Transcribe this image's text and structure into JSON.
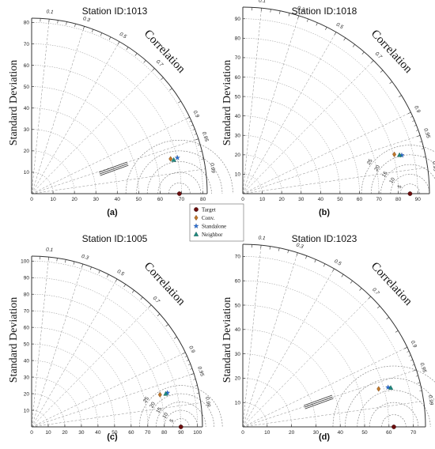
{
  "legend": {
    "items": [
      {
        "label": "Target",
        "marker": "circle",
        "color": "#6b0d0d"
      },
      {
        "label": "Conv.",
        "marker": "diamond",
        "color": "#c0782a"
      },
      {
        "label": "Standalone",
        "marker": "star",
        "color": "#2a6fd6"
      },
      {
        "label": "Neighbor",
        "marker": "triangle",
        "color": "#1f8a80"
      }
    ]
  },
  "chart_data": [
    {
      "type": "taylor",
      "title": "Station ID:1013",
      "panel_label": "(a)",
      "xlabel": "",
      "ylabel": "Standard Deviation",
      "corr_label": "Correlation",
      "max_std": 82,
      "x_ticks": [
        0,
        10,
        20,
        30,
        40,
        50,
        60,
        70,
        80
      ],
      "y_ticks": [
        10,
        20,
        30,
        40,
        50,
        60,
        70,
        80
      ],
      "corr_ticks": [
        0.1,
        0.3,
        0.5,
        0.7,
        0.9,
        0.95,
        0.99
      ],
      "ref_std": 69,
      "rms_arcs": [
        5,
        10,
        15,
        20,
        25
      ],
      "rms_labels_strikethrough": true,
      "rms_labels": [],
      "points": [
        {
          "name": "Target",
          "std": 69,
          "corr": 1.0
        },
        {
          "name": "Conv.",
          "std": 66.9,
          "corr": 0.97
        },
        {
          "name": "Standalone",
          "std": 70.1,
          "corr": 0.971
        },
        {
          "name": "Neighbor",
          "std": 68.2,
          "corr": 0.973
        }
      ]
    },
    {
      "type": "taylor",
      "title": "Station ID:1018",
      "panel_label": "(b)",
      "xlabel": "",
      "ylabel": "Standard Deviation",
      "corr_label": "Correlation",
      "max_std": 96,
      "x_ticks": [
        0,
        10,
        20,
        30,
        40,
        50,
        60,
        70,
        80,
        90
      ],
      "y_ticks": [
        10,
        20,
        30,
        40,
        50,
        60,
        70,
        80,
        90
      ],
      "corr_ticks": [
        0.1,
        0.3,
        0.5,
        0.7,
        0.9,
        0.95,
        0.99
      ],
      "ref_std": 86,
      "rms_arcs": [
        5,
        10,
        15,
        20,
        25
      ],
      "rms_labels_strikethrough": false,
      "rms_labels": [
        "25",
        "20",
        "15",
        "10",
        "5"
      ],
      "points": [
        {
          "name": "Target",
          "std": 86,
          "corr": 1.0
        },
        {
          "name": "Conv.",
          "std": 80.5,
          "corr": 0.968
        },
        {
          "name": "Standalone",
          "std": 84.1,
          "corr": 0.972
        },
        {
          "name": "Neighbor",
          "std": 83.0,
          "corr": 0.971
        }
      ]
    },
    {
      "type": "taylor",
      "title": "Station ID:1005",
      "panel_label": "(c)",
      "xlabel": "",
      "ylabel": "Standard Deviation",
      "corr_label": "Correlation",
      "max_std": 103,
      "x_ticks": [
        0,
        10,
        20,
        30,
        40,
        50,
        60,
        70,
        80,
        90,
        100
      ],
      "y_ticks": [
        10,
        20,
        30,
        40,
        50,
        60,
        70,
        80,
        90,
        100
      ],
      "corr_ticks": [
        0.1,
        0.3,
        0.5,
        0.7,
        0.9,
        0.95,
        0.99
      ],
      "ref_std": 90,
      "rms_arcs": [
        5,
        10,
        15,
        20,
        25
      ],
      "rms_labels_strikethrough": false,
      "rms_labels": [
        "25",
        "20",
        "15",
        "10",
        "5"
      ],
      "points": [
        {
          "name": "Target",
          "std": 90,
          "corr": 1.0
        },
        {
          "name": "Conv.",
          "std": 79.8,
          "corr": 0.97
        },
        {
          "name": "Standalone",
          "std": 84.4,
          "corr": 0.97
        },
        {
          "name": "Neighbor",
          "std": 83.3,
          "corr": 0.971
        }
      ]
    },
    {
      "type": "taylor",
      "title": "Station ID:1023",
      "panel_label": "(d)",
      "xlabel": "",
      "ylabel": "Standard Deviation",
      "corr_label": "Correlation",
      "max_std": 75,
      "x_ticks": [
        0,
        10,
        20,
        30,
        40,
        50,
        60,
        70
      ],
      "y_ticks": [
        10,
        20,
        30,
        40,
        50,
        60,
        70
      ],
      "corr_ticks": [
        0.1,
        0.3,
        0.5,
        0.7,
        0.9,
        0.95,
        0.99
      ],
      "ref_std": 62,
      "rms_arcs": [
        5,
        10,
        15,
        20,
        25
      ],
      "rms_labels_strikethrough": true,
      "rms_labels": [],
      "points": [
        {
          "name": "Target",
          "std": 62,
          "corr": 1.0
        },
        {
          "name": "Conv.",
          "std": 57.9,
          "corr": 0.963
        },
        {
          "name": "Standalone",
          "std": 61.8,
          "corr": 0.965
        },
        {
          "name": "Neighbor",
          "std": 62.8,
          "corr": 0.967
        }
      ]
    }
  ]
}
